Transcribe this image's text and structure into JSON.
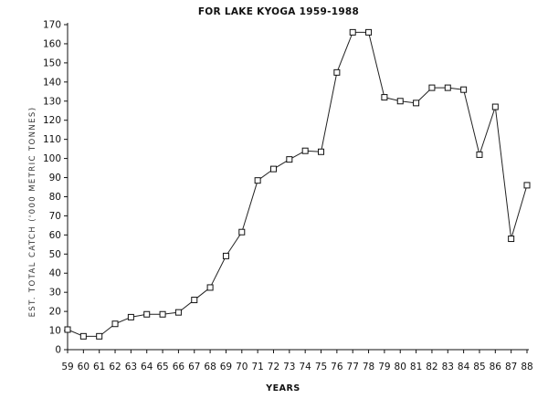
{
  "chart_data": {
    "type": "line",
    "title": "FOR LAKE KYOGA 1959-1988",
    "xlabel": "YEARS",
    "ylabel": "EST. TOTAL CATCH ('000 METRIC TONNES)",
    "ylim": [
      0,
      170
    ],
    "yticks": [
      0,
      10,
      20,
      30,
      40,
      50,
      60,
      70,
      80,
      90,
      100,
      110,
      120,
      130,
      140,
      150,
      160,
      170
    ],
    "categories": [
      "59",
      "60",
      "61",
      "62",
      "63",
      "64",
      "65",
      "66",
      "67",
      "68",
      "69",
      "70",
      "71",
      "72",
      "73",
      "74",
      "75",
      "76",
      "77",
      "78",
      "79",
      "80",
      "81",
      "82",
      "83",
      "84",
      "85",
      "86",
      "87",
      "88"
    ],
    "series": [
      {
        "values": [
          10.5,
          7,
          7,
          13.5,
          17,
          18.5,
          18.5,
          19.5,
          26,
          32.5,
          49,
          61.5,
          88.5,
          94.5,
          99.5,
          104,
          103.5,
          145,
          166,
          166,
          132,
          130,
          129,
          137,
          137,
          136,
          102,
          127,
          58,
          86
        ],
        "marker": "square"
      }
    ],
    "grid": false,
    "legend": "none"
  }
}
